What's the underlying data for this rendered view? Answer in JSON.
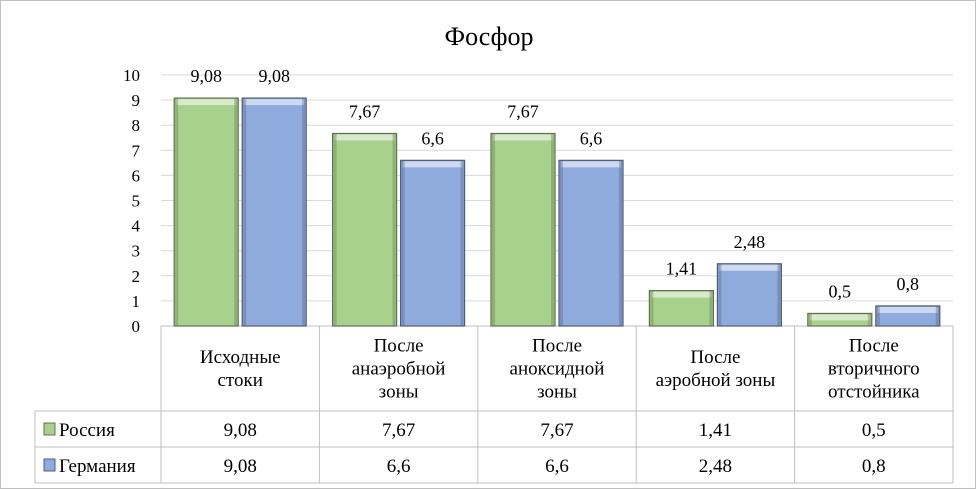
{
  "chart_data": {
    "type": "bar",
    "title": "Фосфор",
    "categories": [
      [
        "Исходные",
        "стоки"
      ],
      [
        "После",
        "анаэробной",
        "зоны"
      ],
      [
        "После",
        "аноксидной",
        "зоны"
      ],
      [
        "После",
        "аэробной зоны"
      ],
      [
        "После",
        "вторичного",
        "отстойника"
      ]
    ],
    "series": [
      {
        "name": "Россия",
        "values": [
          9.08,
          7.67,
          7.67,
          1.41,
          0.5
        ],
        "labels": [
          "9,08",
          "7,67",
          "7,67",
          "1,41",
          "0,5"
        ],
        "color": "#a9d18e"
      },
      {
        "name": "Германия",
        "values": [
          9.08,
          6.6,
          6.6,
          2.48,
          0.8
        ],
        "labels": [
          "9,08",
          "6,6",
          "6,6",
          "2,48",
          "0,8"
        ],
        "color": "#8faadc"
      }
    ],
    "ylim": [
      0,
      10
    ],
    "yticks": [
      "0",
      "1",
      "2",
      "3",
      "4",
      "5",
      "6",
      "7",
      "8",
      "9",
      "10"
    ],
    "grid": true,
    "legend": "data table"
  }
}
